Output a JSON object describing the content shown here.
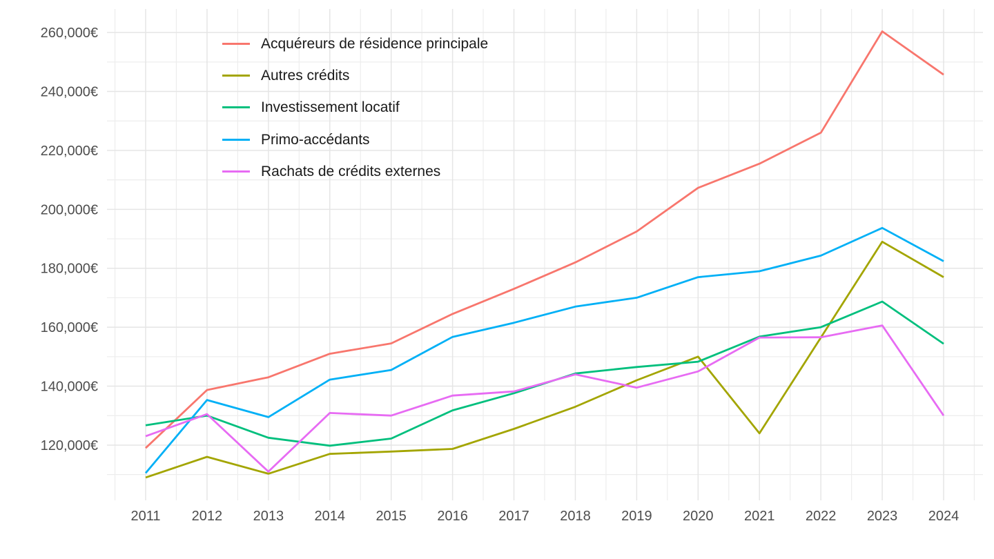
{
  "chart_data": {
    "type": "line",
    "title": "",
    "xlabel": "",
    "ylabel": "",
    "grid": true,
    "legend_position": "top-left-inside",
    "currency_suffix": "€",
    "x": [
      2011,
      2012,
      2013,
      2014,
      2015,
      2016,
      2017,
      2018,
      2019,
      2020,
      2021,
      2022,
      2023,
      2024
    ],
    "x_tick_labels": [
      "2011",
      "2012",
      "2013",
      "2014",
      "2015",
      "2016",
      "2017",
      "2018",
      "2019",
      "2020",
      "2021",
      "2022",
      "2023",
      "2024"
    ],
    "ylim": [
      101250,
      268000
    ],
    "y_ticks": [
      {
        "value": 120000,
        "label": "120,000€"
      },
      {
        "value": 140000,
        "label": "140,000€"
      },
      {
        "value": 160000,
        "label": "160,000€"
      },
      {
        "value": 180000,
        "label": "180,000€"
      },
      {
        "value": 200000,
        "label": "200,000€"
      },
      {
        "value": 220000,
        "label": "220,000€"
      },
      {
        "value": 240000,
        "label": "240,000€"
      },
      {
        "value": 260000,
        "label": "260,000€"
      }
    ],
    "y_minor_ticks": [
      110000,
      130000,
      150000,
      170000,
      190000,
      210000,
      230000,
      250000
    ],
    "series": [
      {
        "name": "Acquéreurs de résidence principale",
        "color": "#F8766D",
        "values": [
          119000,
          138700,
          143000,
          151000,
          154500,
          164500,
          173000,
          182000,
          192500,
          207300,
          215500,
          226000,
          260400,
          245700
        ]
      },
      {
        "name": "Autres crédits",
        "color": "#A3A500",
        "values": [
          109000,
          116000,
          110300,
          117000,
          117800,
          118700,
          125500,
          133000,
          142000,
          150000,
          124000,
          156500,
          189000,
          177000
        ]
      },
      {
        "name": "Investissement locatif",
        "color": "#00BF7D",
        "values": [
          126700,
          130000,
          122500,
          119800,
          122200,
          131800,
          137600,
          144300,
          146500,
          148300,
          156800,
          160000,
          168700,
          154400
        ]
      },
      {
        "name": "Primo-accédants",
        "color": "#00B0F6",
        "values": [
          110500,
          135300,
          129500,
          142200,
          145500,
          156700,
          161500,
          167000,
          170000,
          177000,
          179000,
          184300,
          193700,
          182400
        ]
      },
      {
        "name": "Rachats de crédits externes",
        "color": "#E76BF3",
        "values": [
          123000,
          130500,
          111000,
          130900,
          130000,
          136800,
          138200,
          144000,
          139500,
          145000,
          156500,
          156600,
          160600,
          130000
        ]
      }
    ]
  },
  "styles": {
    "background": "#FFFFFF",
    "grid_major": "#E5E5E5",
    "grid_minor": "#EDEDED",
    "axis_text_color": "#4D4D4D",
    "legend_text_color": "#1A1A1A"
  }
}
